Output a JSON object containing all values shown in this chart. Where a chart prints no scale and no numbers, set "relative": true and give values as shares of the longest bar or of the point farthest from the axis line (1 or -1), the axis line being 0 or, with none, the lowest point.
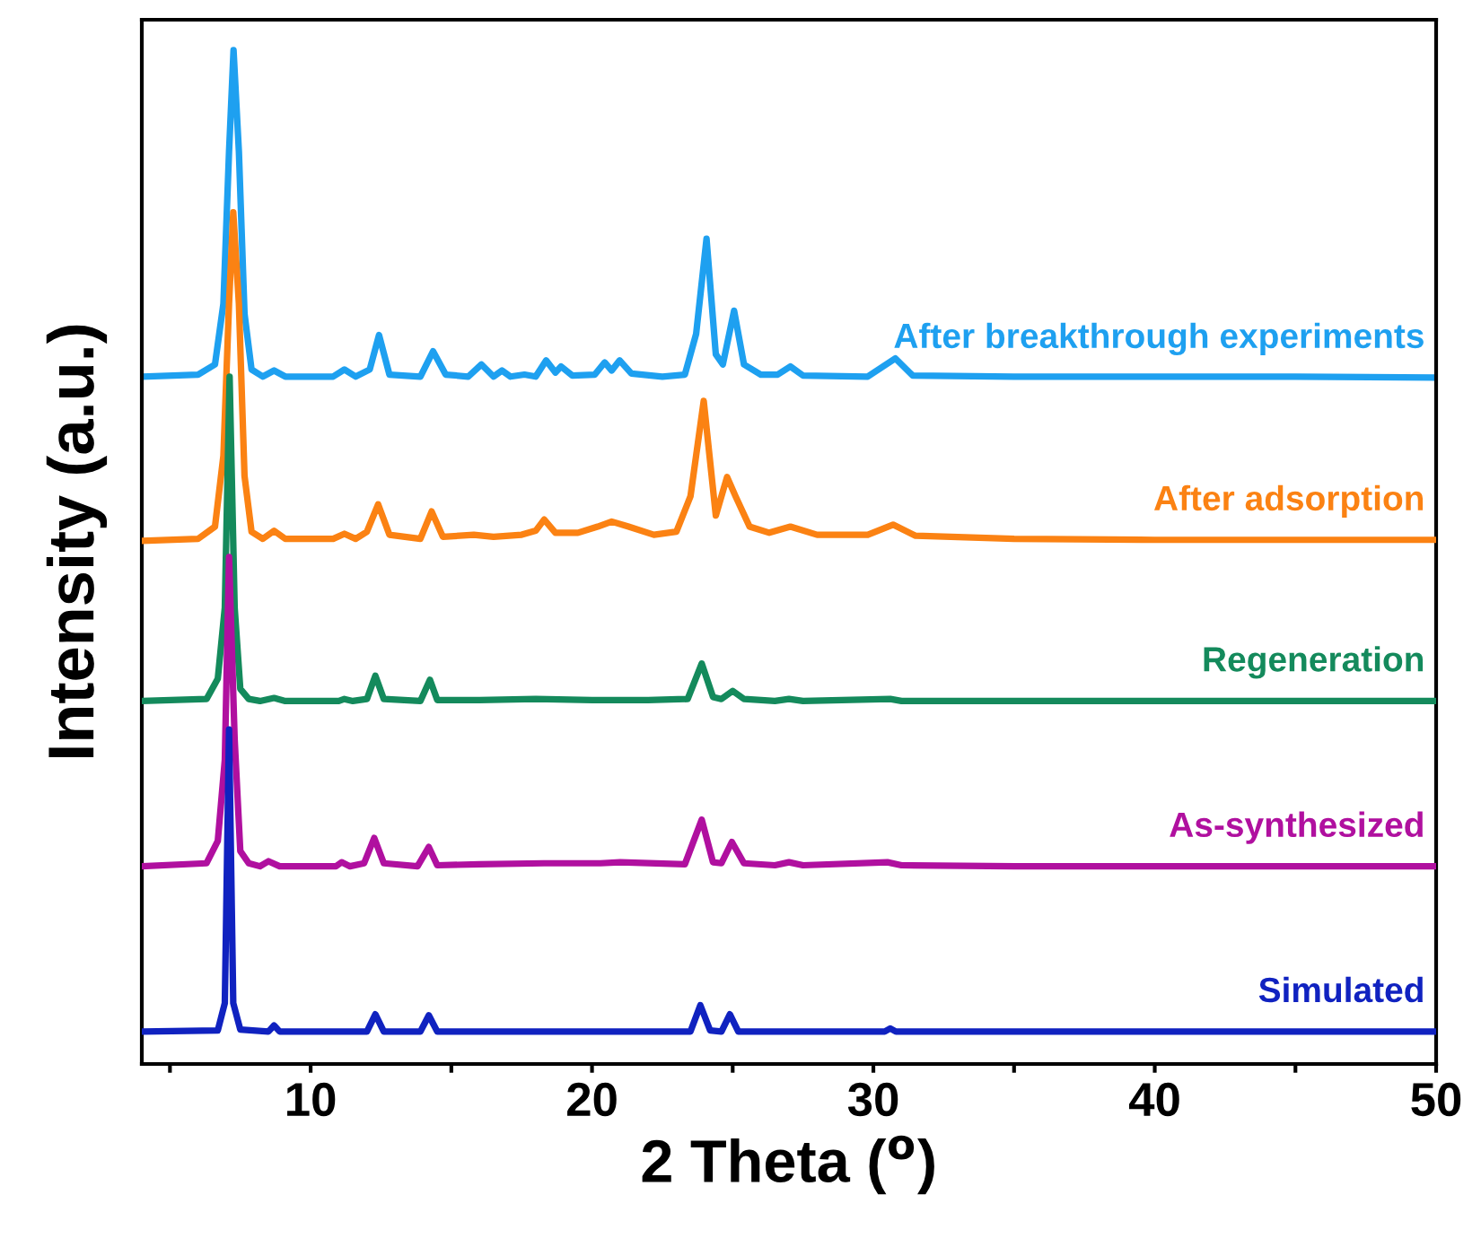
{
  "chart_data": {
    "type": "line",
    "relative": true,
    "xlabel": "2 Theta ($^{o}$)",
    "ylabel": "Intensity (a.u.)",
    "xlim": [
      4,
      50
    ],
    "xticks": [
      {
        "value": 5,
        "label": null
      },
      10,
      {
        "value": 15,
        "label": null
      },
      20,
      {
        "value": 25,
        "label": null
      },
      30,
      {
        "value": 35,
        "label": null
      },
      40,
      {
        "value": 45,
        "label": null
      },
      50
    ],
    "grid": false,
    "legend": false,
    "marker": "none",
    "line_style": "solid",
    "series": [
      {
        "name": "After breakthrough experiments",
        "color": "#1ea0f0",
        "x": [
          4,
          6.0,
          6.6,
          6.9,
          7.1,
          7.26,
          7.45,
          7.65,
          7.9,
          8.3,
          8.7,
          9.1,
          10.8,
          11.2,
          11.6,
          12.1,
          12.43,
          12.8,
          13.9,
          14.35,
          14.8,
          15.6,
          16.07,
          16.5,
          16.8,
          17.1,
          17.6,
          18.0,
          18.37,
          18.7,
          18.9,
          19.3,
          20.1,
          20.45,
          20.7,
          20.98,
          21.4,
          22.5,
          23.3,
          23.7,
          24.07,
          24.4,
          24.65,
          25.05,
          25.4,
          26.0,
          26.6,
          27.05,
          27.5,
          29.8,
          30.78,
          31.4,
          35,
          40,
          45,
          50
        ],
        "values": [
          0.678,
          0.68,
          0.69,
          0.75,
          0.9,
          1.0,
          0.9,
          0.74,
          0.685,
          0.678,
          0.684,
          0.678,
          0.678,
          0.685,
          0.678,
          0.685,
          0.719,
          0.68,
          0.678,
          0.703,
          0.68,
          0.678,
          0.69,
          0.678,
          0.684,
          0.678,
          0.68,
          0.678,
          0.694,
          0.682,
          0.688,
          0.679,
          0.68,
          0.692,
          0.684,
          0.694,
          0.681,
          0.678,
          0.68,
          0.72,
          0.814,
          0.7,
          0.69,
          0.743,
          0.69,
          0.68,
          0.68,
          0.688,
          0.679,
          0.678,
          0.696,
          0.679,
          0.678,
          0.678,
          0.678,
          0.677
        ]
      },
      {
        "name": "After adsorption",
        "color": "#fb8213",
        "x": [
          4,
          6.0,
          6.6,
          6.9,
          7.1,
          7.25,
          7.45,
          7.65,
          7.9,
          8.3,
          8.7,
          9.1,
          10.8,
          11.2,
          11.6,
          12.0,
          12.4,
          12.8,
          13.9,
          14.3,
          14.7,
          15.8,
          16.5,
          17.5,
          18.0,
          18.3,
          18.7,
          19.5,
          20.2,
          20.7,
          21.3,
          22.2,
          23.0,
          23.5,
          23.97,
          24.4,
          24.8,
          25.1,
          25.6,
          26.3,
          27.05,
          28,
          29.8,
          30.7,
          31.5,
          35,
          40,
          45,
          50
        ],
        "values": [
          0.516,
          0.518,
          0.53,
          0.6,
          0.75,
          0.84,
          0.75,
          0.58,
          0.525,
          0.518,
          0.526,
          0.518,
          0.518,
          0.523,
          0.518,
          0.525,
          0.552,
          0.522,
          0.518,
          0.545,
          0.52,
          0.522,
          0.52,
          0.522,
          0.526,
          0.537,
          0.524,
          0.524,
          0.53,
          0.535,
          0.53,
          0.522,
          0.525,
          0.56,
          0.654,
          0.541,
          0.579,
          0.56,
          0.53,
          0.524,
          0.53,
          0.522,
          0.522,
          0.532,
          0.521,
          0.518,
          0.517,
          0.517,
          0.517
        ]
      },
      {
        "name": "Regeneration",
        "color": "#148a5c",
        "x": [
          4,
          6.3,
          6.7,
          6.95,
          7.12,
          7.3,
          7.5,
          7.8,
          8.2,
          8.7,
          9.1,
          11.0,
          11.2,
          11.5,
          12.0,
          12.3,
          12.6,
          13.9,
          14.24,
          14.5,
          16,
          18,
          20,
          22,
          23.4,
          23.9,
          24.3,
          24.6,
          25.0,
          25.4,
          26.5,
          27.0,
          27.5,
          30.6,
          31,
          35,
          40,
          45,
          50
        ],
        "values": [
          0.358,
          0.36,
          0.38,
          0.45,
          0.678,
          0.45,
          0.37,
          0.36,
          0.358,
          0.361,
          0.358,
          0.358,
          0.36,
          0.358,
          0.36,
          0.383,
          0.36,
          0.358,
          0.379,
          0.359,
          0.359,
          0.36,
          0.359,
          0.359,
          0.36,
          0.395,
          0.362,
          0.36,
          0.368,
          0.36,
          0.358,
          0.36,
          0.358,
          0.36,
          0.358,
          0.358,
          0.358,
          0.358,
          0.358
        ]
      },
      {
        "name": "As-synthesized",
        "color": "#b0109f",
        "x": [
          4,
          6.3,
          6.7,
          6.95,
          7.1,
          7.3,
          7.5,
          7.8,
          8.2,
          8.5,
          8.9,
          10.9,
          11.1,
          11.4,
          11.9,
          12.26,
          12.6,
          13.8,
          14.2,
          14.5,
          16,
          18.3,
          20.3,
          21,
          23.3,
          23.9,
          24.3,
          24.6,
          24.97,
          25.4,
          26.5,
          27,
          27.5,
          30.5,
          31,
          35,
          40,
          45,
          50
        ],
        "values": [
          0.195,
          0.198,
          0.22,
          0.3,
          0.5,
          0.32,
          0.21,
          0.198,
          0.195,
          0.2,
          0.195,
          0.195,
          0.199,
          0.195,
          0.198,
          0.223,
          0.198,
          0.195,
          0.214,
          0.196,
          0.197,
          0.198,
          0.198,
          0.199,
          0.197,
          0.241,
          0.199,
          0.198,
          0.219,
          0.198,
          0.196,
          0.199,
          0.196,
          0.199,
          0.196,
          0.195,
          0.195,
          0.195,
          0.195
        ]
      },
      {
        "name": "Simulated",
        "color": "#1022c0",
        "x": [
          4,
          6.7,
          6.95,
          7.1,
          7.25,
          7.5,
          8.5,
          8.7,
          8.9,
          12.0,
          12.3,
          12.6,
          13.9,
          14.2,
          14.5,
          23.5,
          23.85,
          24.2,
          24.6,
          24.9,
          25.2,
          30.4,
          30.6,
          30.8,
          50
        ],
        "values": [
          0.032,
          0.033,
          0.06,
          0.33,
          0.06,
          0.034,
          0.032,
          0.038,
          0.032,
          0.032,
          0.049,
          0.032,
          0.032,
          0.048,
          0.032,
          0.032,
          0.058,
          0.033,
          0.032,
          0.049,
          0.032,
          0.032,
          0.035,
          0.032,
          0.032
        ]
      }
    ]
  }
}
